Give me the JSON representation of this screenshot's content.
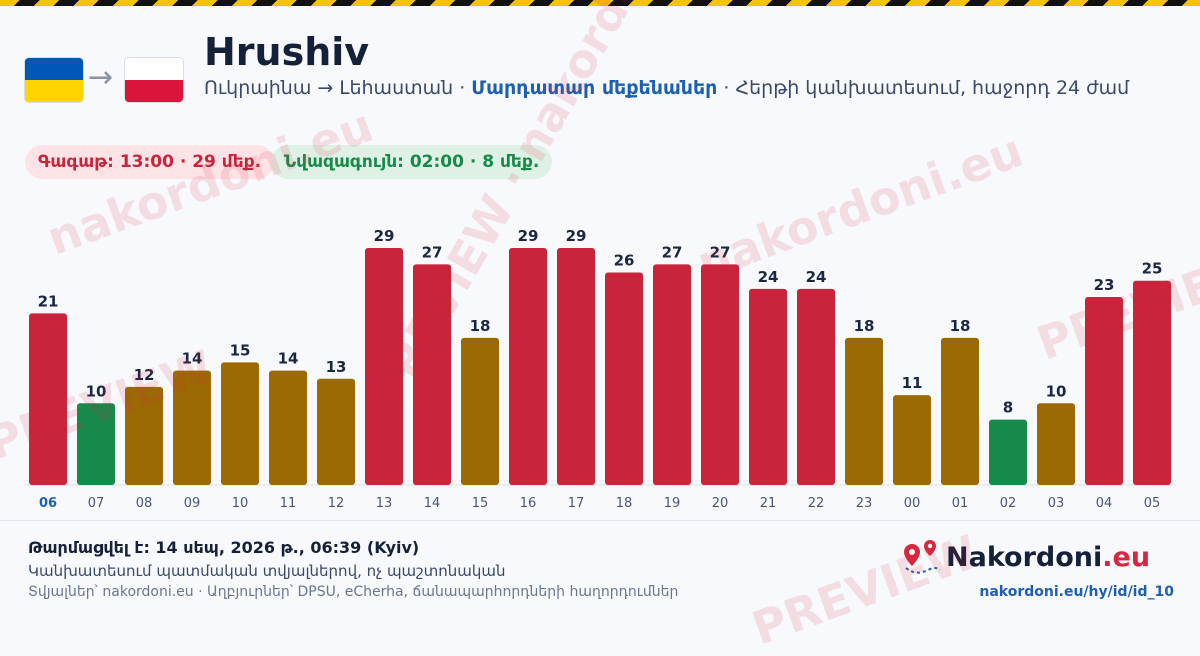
{
  "header": {
    "title": "Hrushiv",
    "route": "Ուկրաինա → Լեհաստան",
    "separator": " · ",
    "mode": "Մարդատար մեքենաներ",
    "forecast": "Հերթի կանխատեսում, հաջորդ 24 ժամ",
    "flag_from": "Ukraine",
    "flag_to": "Poland",
    "arrow": "→"
  },
  "badges": {
    "peak": "Գագաթ: 13:00 · 29 մեք.",
    "low": "Նվազագույն: 02:00 · 8 մեք."
  },
  "chart_data": {
    "type": "bar",
    "categories": [
      "06",
      "07",
      "08",
      "09",
      "10",
      "11",
      "12",
      "13",
      "14",
      "15",
      "16",
      "17",
      "18",
      "19",
      "20",
      "21",
      "22",
      "23",
      "00",
      "01",
      "02",
      "03",
      "04",
      "05"
    ],
    "values": [
      21,
      10,
      12,
      14,
      15,
      14,
      13,
      29,
      27,
      18,
      29,
      29,
      26,
      27,
      27,
      24,
      24,
      18,
      11,
      18,
      8,
      10,
      23,
      25
    ],
    "levels": [
      "high",
      "low",
      "medium",
      "medium",
      "medium",
      "medium",
      "medium",
      "high",
      "high",
      "medium",
      "high",
      "high",
      "high",
      "high",
      "high",
      "high",
      "high",
      "medium",
      "medium",
      "medium",
      "low",
      "medium",
      "high",
      "high"
    ],
    "colors": {
      "high": "#c8243b",
      "medium": "#9b6a05",
      "low": "#17894a"
    },
    "highlight_category": "06",
    "ylim": [
      0,
      29
    ]
  },
  "footer": {
    "updated": "Թարմացվել է: 14 սեպ, 2026 թ., 06:39 (Kyiv)",
    "note": "Կանխատեսում պատմական տվյալներով, ոչ պաշտոնական",
    "sources": "Տվյալներ՝ nakordoni.eu · Աղբյուրներ՝ DPSU, eCherha, ճանապարհորդների հաղորդումներ",
    "brand_name": "Nakordoni",
    "brand_tld": ".eu",
    "link": "nakordoni.eu/hy/id/id_10"
  },
  "watermarks": {
    "site": "nakordoni.eu",
    "preview": "PREVIEW · nakordoni.eu",
    "preview_short": "PREVIEW"
  }
}
